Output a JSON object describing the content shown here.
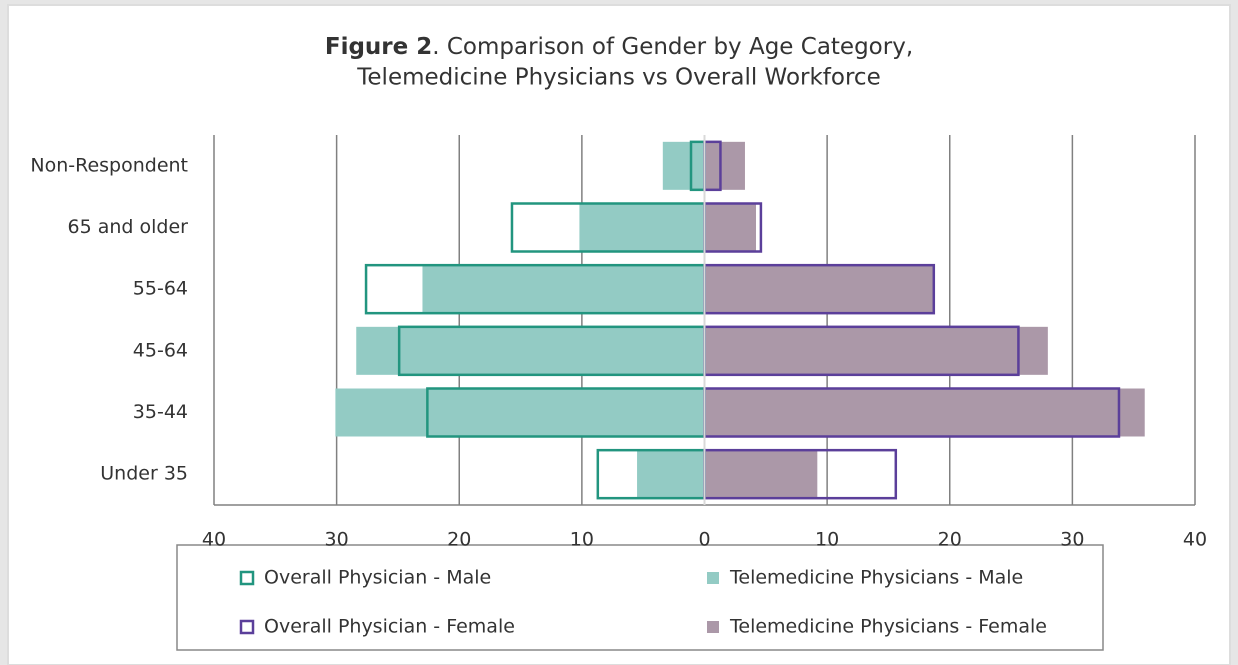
{
  "chart_data": {
    "type": "pyramid",
    "title": {
      "label": "Figure 2",
      "lines": [
        ". Comparison of Gender by Age Category,",
        "Telemedicine Physicians vs Overall Workforce"
      ]
    },
    "categories": [
      "Non-Respondent",
      "65 and older",
      "55-64",
      "45-64",
      "35-44",
      "Under 35"
    ],
    "series": [
      {
        "name": "Telemedicine Physicians - Male",
        "color": "#93cbc4",
        "style": "solid",
        "values": [
          -3.4,
          -10.2,
          -23.0,
          -28.4,
          -30.1,
          -5.5
        ]
      },
      {
        "name": "Telemedicine Physicians - Female",
        "color": "#ab98a8",
        "style": "solid",
        "values": [
          3.3,
          4.2,
          18.7,
          28.0,
          35.9,
          9.2
        ]
      },
      {
        "name": "Overall Physician - Male",
        "color": "#22957f",
        "style": "outline",
        "values": [
          -1.1,
          -15.7,
          -27.6,
          -24.9,
          -22.6,
          -8.7
        ]
      },
      {
        "name": "Overall Physician - Female",
        "color": "#5b3f9a",
        "style": "outline",
        "values": [
          1.3,
          4.6,
          18.7,
          25.6,
          33.8,
          15.6
        ]
      }
    ],
    "legend_order": [
      2,
      0,
      3,
      1
    ],
    "xlim": [
      -40,
      40
    ],
    "xticks": [
      {
        "value": -40,
        "label": "40"
      },
      {
        "value": -30,
        "label": "30"
      },
      {
        "value": -20,
        "label": "20"
      },
      {
        "value": -10,
        "label": "10"
      },
      0,
      10,
      20,
      30,
      40
    ],
    "grid": true
  }
}
